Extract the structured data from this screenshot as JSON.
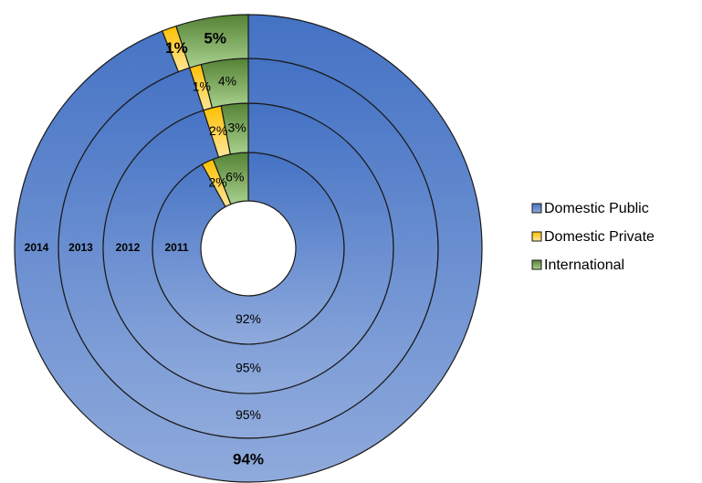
{
  "chart_data": {
    "type": "donut",
    "categories": [
      "2011",
      "2012",
      "2013",
      "2014"
    ],
    "series": [
      {
        "name": "Domestic Public",
        "color": "#4472c4",
        "values": [
          92,
          95,
          95,
          94
        ],
        "value_labels": [
          "92%",
          "95%",
          "95%",
          "94%"
        ]
      },
      {
        "name": "Domestic Private",
        "color": "#ffc000",
        "values": [
          2,
          2,
          1,
          1
        ],
        "value_labels": [
          "2%",
          "2%",
          "1%",
          "1%"
        ]
      },
      {
        "name": "International",
        "color": "#70ad47",
        "values": [
          6,
          3,
          4,
          5
        ],
        "value_labels": [
          "6%",
          "3%",
          "4%",
          "5%"
        ]
      }
    ],
    "legend": "right"
  }
}
